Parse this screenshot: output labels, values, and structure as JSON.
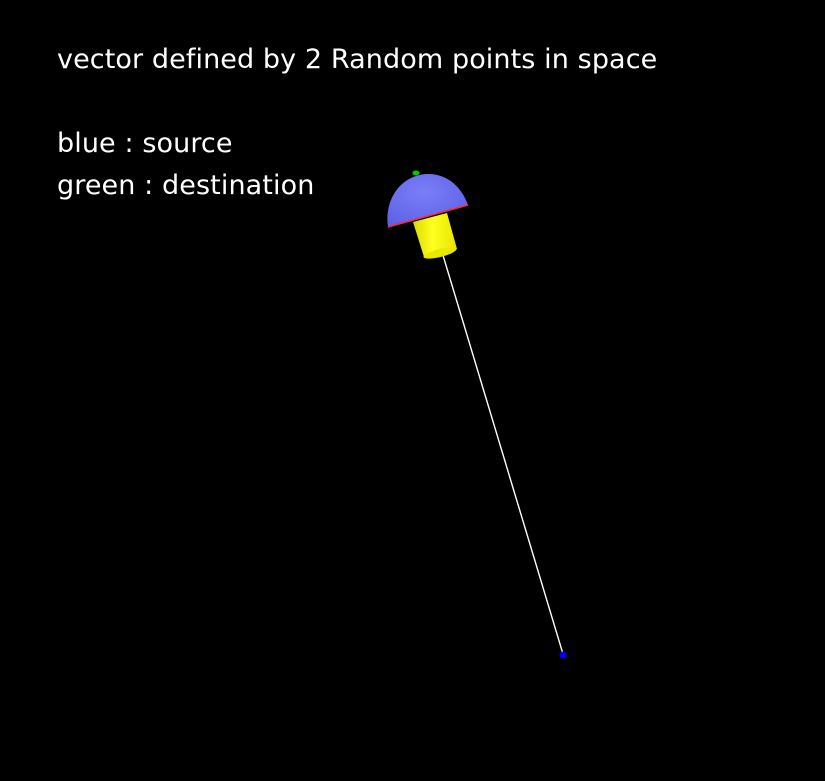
{
  "scene": {
    "background": "#000000"
  },
  "captions": {
    "title": "vector defined by 2 Random points in space",
    "legend_source": "blue : source",
    "legend_destination": "green : destination"
  },
  "colors": {
    "text": "#ffffff",
    "source_point": "#0000ff",
    "destination_point": "#00cc00",
    "vector_line": "#ffffff",
    "arrow_cap": "#6b6ff0",
    "arrow_cap_rim": "#ff2a2a",
    "arrow_shaft": "#ffff00"
  }
}
